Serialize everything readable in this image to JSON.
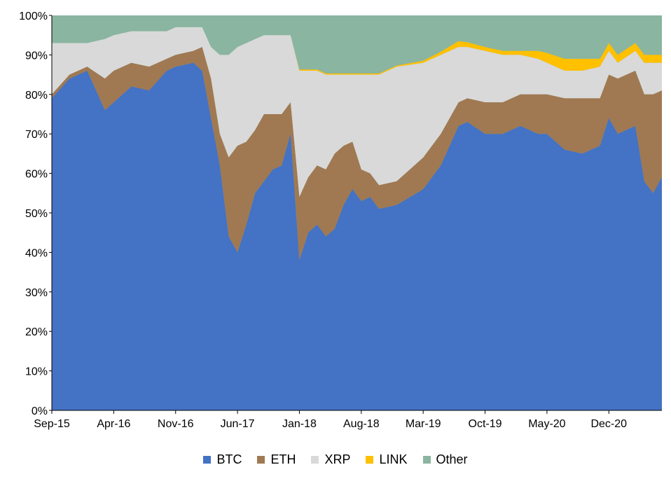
{
  "chart_data": {
    "type": "area",
    "stacked": true,
    "normalized": true,
    "x_ticks": [
      "Sep-15",
      "Apr-16",
      "Nov-16",
      "Jun-17",
      "Jan-18",
      "Aug-18",
      "Mar-19",
      "Oct-19",
      "May-20",
      "Dec-20"
    ],
    "y_ticks": [
      "0%",
      "10%",
      "20%",
      "30%",
      "40%",
      "50%",
      "60%",
      "70%",
      "80%",
      "90%",
      "100%"
    ],
    "ylim": [
      0,
      100
    ],
    "grid": false,
    "legend_position": "bottom",
    "series": [
      {
        "name": "BTC",
        "color": "#4472c4",
        "points": [
          [
            "Sep-15",
            79
          ],
          [
            "Nov-15",
            84
          ],
          [
            "Jan-16",
            86
          ],
          [
            "Mar-16",
            76
          ],
          [
            "Apr-16",
            78
          ],
          [
            "Jun-16",
            82
          ],
          [
            "Aug-16",
            81
          ],
          [
            "Oct-16",
            86
          ],
          [
            "Nov-16",
            87
          ],
          [
            "Jan-17",
            88
          ],
          [
            "Feb-17",
            86
          ],
          [
            "Mar-17",
            74
          ],
          [
            "Apr-17",
            62
          ],
          [
            "May-17",
            44
          ],
          [
            "Jun-17",
            40
          ],
          [
            "Jul-17",
            47
          ],
          [
            "Aug-17",
            55
          ],
          [
            "Sep-17",
            58
          ],
          [
            "Oct-17",
            61
          ],
          [
            "Nov-17",
            62
          ],
          [
            "Dec-17",
            70
          ],
          [
            "Jan-18",
            38
          ],
          [
            "Feb-18",
            45
          ],
          [
            "Mar-18",
            47
          ],
          [
            "Apr-18",
            44
          ],
          [
            "May-18",
            46
          ],
          [
            "Jun-18",
            52
          ],
          [
            "Jul-18",
            56
          ],
          [
            "Aug-18",
            53
          ],
          [
            "Sep-18",
            54
          ],
          [
            "Oct-18",
            51
          ],
          [
            "Dec-18",
            52
          ],
          [
            "Mar-19",
            56
          ],
          [
            "May-19",
            62
          ],
          [
            "Jul-19",
            72
          ],
          [
            "Aug-19",
            73
          ],
          [
            "Oct-19",
            70
          ],
          [
            "Dec-19",
            70
          ],
          [
            "Feb-20",
            72
          ],
          [
            "Apr-20",
            70
          ],
          [
            "May-20",
            70
          ],
          [
            "Jul-20",
            66
          ],
          [
            "Sep-20",
            65
          ],
          [
            "Nov-20",
            67
          ],
          [
            "Dec-20",
            74
          ],
          [
            "Jan-21",
            70
          ],
          [
            "Mar-21",
            72
          ],
          [
            "Apr-21",
            58
          ],
          [
            "May-21",
            55
          ],
          [
            "Jun-21",
            59
          ]
        ]
      },
      {
        "name": "ETH",
        "color": "#a07952",
        "points": [
          [
            "Sep-15",
            1
          ],
          [
            "Nov-15",
            1
          ],
          [
            "Jan-16",
            1
          ],
          [
            "Mar-16",
            8
          ],
          [
            "Apr-16",
            8
          ],
          [
            "Jun-16",
            6
          ],
          [
            "Aug-16",
            6
          ],
          [
            "Oct-16",
            3
          ],
          [
            "Nov-16",
            3
          ],
          [
            "Jan-17",
            3
          ],
          [
            "Feb-17",
            6
          ],
          [
            "Mar-17",
            10
          ],
          [
            "Apr-17",
            8
          ],
          [
            "May-17",
            20
          ],
          [
            "Jun-17",
            27
          ],
          [
            "Jul-17",
            21
          ],
          [
            "Aug-17",
            16
          ],
          [
            "Sep-17",
            17
          ],
          [
            "Oct-17",
            14
          ],
          [
            "Nov-17",
            13
          ],
          [
            "Dec-17",
            8
          ],
          [
            "Jan-18",
            16
          ],
          [
            "Feb-18",
            14
          ],
          [
            "Mar-18",
            15
          ],
          [
            "Apr-18",
            17
          ],
          [
            "May-18",
            19
          ],
          [
            "Jun-18",
            15
          ],
          [
            "Jul-18",
            12
          ],
          [
            "Aug-18",
            8
          ],
          [
            "Sep-18",
            6
          ],
          [
            "Oct-18",
            6
          ],
          [
            "Dec-18",
            6
          ],
          [
            "Mar-19",
            8
          ],
          [
            "May-19",
            8
          ],
          [
            "Jul-19",
            6
          ],
          [
            "Aug-19",
            6
          ],
          [
            "Oct-19",
            8
          ],
          [
            "Dec-19",
            8
          ],
          [
            "Feb-20",
            8
          ],
          [
            "Apr-20",
            10
          ],
          [
            "May-20",
            10
          ],
          [
            "Jul-20",
            13
          ],
          [
            "Sep-20",
            14
          ],
          [
            "Nov-20",
            12
          ],
          [
            "Dec-20",
            11
          ],
          [
            "Jan-21",
            14
          ],
          [
            "Mar-21",
            14
          ],
          [
            "Apr-21",
            22
          ],
          [
            "May-21",
            25
          ],
          [
            "Jun-21",
            22
          ]
        ]
      },
      {
        "name": "XRP",
        "color": "#d9d9d9",
        "points": [
          [
            "Sep-15",
            13
          ],
          [
            "Nov-15",
            8
          ],
          [
            "Jan-16",
            6
          ],
          [
            "Mar-16",
            10
          ],
          [
            "Apr-16",
            9
          ],
          [
            "Jun-16",
            8
          ],
          [
            "Aug-16",
            9
          ],
          [
            "Oct-16",
            7
          ],
          [
            "Nov-16",
            7
          ],
          [
            "Jan-17",
            6
          ],
          [
            "Feb-17",
            5
          ],
          [
            "Mar-17",
            8
          ],
          [
            "Apr-17",
            20
          ],
          [
            "May-17",
            26
          ],
          [
            "Jun-17",
            25
          ],
          [
            "Jul-17",
            25
          ],
          [
            "Aug-17",
            23
          ],
          [
            "Sep-17",
            20
          ],
          [
            "Oct-17",
            20
          ],
          [
            "Nov-17",
            20
          ],
          [
            "Dec-17",
            17
          ],
          [
            "Jan-18",
            32
          ],
          [
            "Feb-18",
            27
          ],
          [
            "Mar-18",
            24
          ],
          [
            "Apr-18",
            24
          ],
          [
            "May-18",
            20
          ],
          [
            "Jun-18",
            18
          ],
          [
            "Jul-18",
            17
          ],
          [
            "Aug-18",
            24
          ],
          [
            "Sep-18",
            25
          ],
          [
            "Oct-18",
            28
          ],
          [
            "Dec-18",
            29
          ],
          [
            "Mar-19",
            24
          ],
          [
            "May-19",
            20
          ],
          [
            "Jul-19",
            14
          ],
          [
            "Aug-19",
            13
          ],
          [
            "Oct-19",
            13
          ],
          [
            "Dec-19",
            12
          ],
          [
            "Feb-20",
            10
          ],
          [
            "Apr-20",
            9
          ],
          [
            "May-20",
            8
          ],
          [
            "Jul-20",
            7
          ],
          [
            "Sep-20",
            7
          ],
          [
            "Nov-20",
            8
          ],
          [
            "Dec-20",
            6
          ],
          [
            "Jan-21",
            4
          ],
          [
            "Mar-21",
            5
          ],
          [
            "Apr-21",
            8
          ],
          [
            "May-21",
            8
          ],
          [
            "Jun-21",
            7
          ]
        ]
      },
      {
        "name": "LINK",
        "color": "#ffc000",
        "points": [
          [
            "Sep-15",
            0
          ],
          [
            "Nov-15",
            0
          ],
          [
            "Jan-16",
            0
          ],
          [
            "Mar-16",
            0
          ],
          [
            "Apr-16",
            0
          ],
          [
            "Jun-16",
            0
          ],
          [
            "Aug-16",
            0
          ],
          [
            "Oct-16",
            0
          ],
          [
            "Nov-16",
            0
          ],
          [
            "Jan-17",
            0
          ],
          [
            "Feb-17",
            0
          ],
          [
            "Mar-17",
            0
          ],
          [
            "Apr-17",
            0
          ],
          [
            "May-17",
            0
          ],
          [
            "Jun-17",
            0
          ],
          [
            "Jul-17",
            0
          ],
          [
            "Aug-17",
            0
          ],
          [
            "Sep-17",
            0
          ],
          [
            "Oct-17",
            0
          ],
          [
            "Nov-17",
            0
          ],
          [
            "Dec-17",
            0
          ],
          [
            "Jan-18",
            0.3
          ],
          [
            "Feb-18",
            0.3
          ],
          [
            "Mar-18",
            0.3
          ],
          [
            "Apr-18",
            0.3
          ],
          [
            "May-18",
            0.3
          ],
          [
            "Jun-18",
            0.3
          ],
          [
            "Jul-18",
            0.3
          ],
          [
            "Aug-18",
            0.3
          ],
          [
            "Sep-18",
            0.3
          ],
          [
            "Oct-18",
            0.3
          ],
          [
            "Dec-18",
            0.3
          ],
          [
            "Mar-19",
            0.5
          ],
          [
            "May-19",
            0.8
          ],
          [
            "Jul-19",
            1.5
          ],
          [
            "Aug-19",
            1.2
          ],
          [
            "Oct-19",
            1
          ],
          [
            "Dec-19",
            1
          ],
          [
            "Feb-20",
            1
          ],
          [
            "Apr-20",
            2
          ],
          [
            "May-20",
            2.5
          ],
          [
            "Jul-20",
            3
          ],
          [
            "Sep-20",
            3
          ],
          [
            "Nov-20",
            2
          ],
          [
            "Dec-20",
            2
          ],
          [
            "Jan-21",
            2
          ],
          [
            "Mar-21",
            2
          ],
          [
            "Apr-21",
            2
          ],
          [
            "May-21",
            2
          ],
          [
            "Jun-21",
            2
          ]
        ]
      }
    ]
  },
  "legend": [
    {
      "name": "BTC",
      "color": "#4472c4"
    },
    {
      "name": "ETH",
      "color": "#a07952"
    },
    {
      "name": "XRP",
      "color": "#d9d9d9"
    },
    {
      "name": "LINK",
      "color": "#ffc000"
    },
    {
      "name": "Other",
      "color": "#8ab5a1"
    }
  ]
}
